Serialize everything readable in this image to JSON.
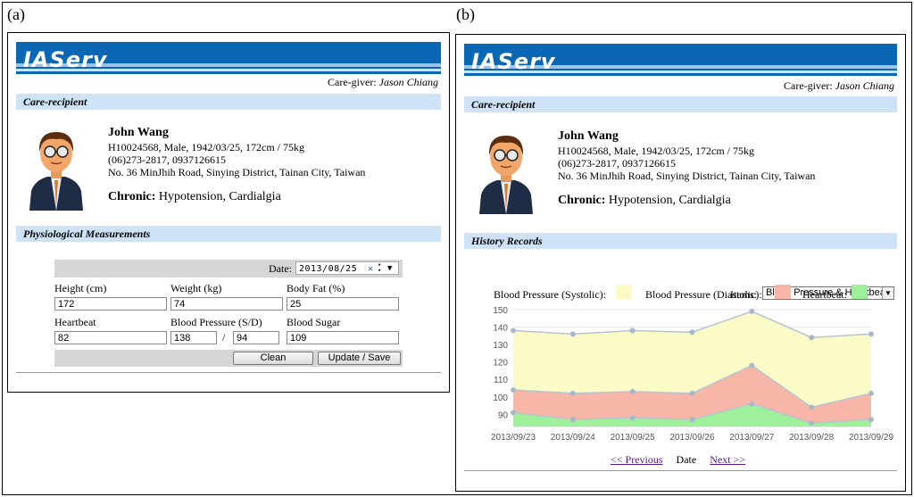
{
  "labels": {
    "a": "(a)",
    "b": "(b)"
  },
  "app": {
    "logo": "IAServ",
    "caregiver_prefix": "Care-giver:",
    "caregiver_name": "Jason Chiang"
  },
  "sections": {
    "care_recipient": "Care-recipient",
    "physiological": "Physiological Measurements",
    "history": "History Records"
  },
  "patient": {
    "name": "John Wang",
    "id_line": "H10024568, Male, 1942/03/25, 172cm / 75kg",
    "phone_line": "(06)273-2817, 0937126615",
    "address_line": "No. 36 MinJhih Road, Sinying District, Tainan City, Taiwan",
    "chronic_label": "Chronic:",
    "chronic_value": "Hypotension, Cardialgia"
  },
  "form": {
    "date_label": "Date:",
    "date_value": "2013/08/25",
    "height_label": "Height (cm)",
    "height_value": "172",
    "weight_label": "Weight (kg)",
    "weight_value": "74",
    "bodyfat_label": "Body Fat (%)",
    "bodyfat_value": "25",
    "heartbeat_label": "Heartbeat",
    "heartbeat_value": "82",
    "bp_label": "Blood Pressure (S/D)",
    "bp_systolic": "138",
    "bp_slash": "/",
    "bp_diastolic": "94",
    "sugar_label": "Blood Sugar",
    "sugar_value": "109",
    "clean_button": "Clean",
    "save_button": "Update / Save"
  },
  "history": {
    "items_label": "Items:",
    "items_value": "Blood Pressure & Heartbeat",
    "prev": "<< Previous",
    "date_label": "Date",
    "next": "Next >>"
  },
  "colors": {
    "banner": "#0a67b3",
    "section": "#cfe3f8",
    "systolic": "#fbfbc8",
    "diastolic": "#f7b6a8",
    "heartbeat": "#9ef09a",
    "point": "#a9b8c9"
  },
  "chart_data": {
    "type": "area",
    "x": [
      "2013/09/23",
      "2013/09/24",
      "2013/09/25",
      "2013/09/26",
      "2013/09/27",
      "2013/09/28",
      "2013/09/29"
    ],
    "yticks": [
      90,
      100,
      110,
      120,
      130,
      140,
      150
    ],
    "ylim": [
      83,
      150
    ],
    "grid": true,
    "legend_placement": "top",
    "series": [
      {
        "name": "Blood Pressure (Systolic):",
        "values": [
          138,
          136,
          138,
          137,
          149,
          134,
          136
        ]
      },
      {
        "name": "Blood Pressure (Diastolic):",
        "values": [
          104,
          102,
          103,
          102,
          118,
          94,
          102
        ]
      },
      {
        "name": "Heartbeat:",
        "values": [
          91,
          87,
          88,
          87,
          96,
          85,
          87
        ]
      }
    ]
  }
}
